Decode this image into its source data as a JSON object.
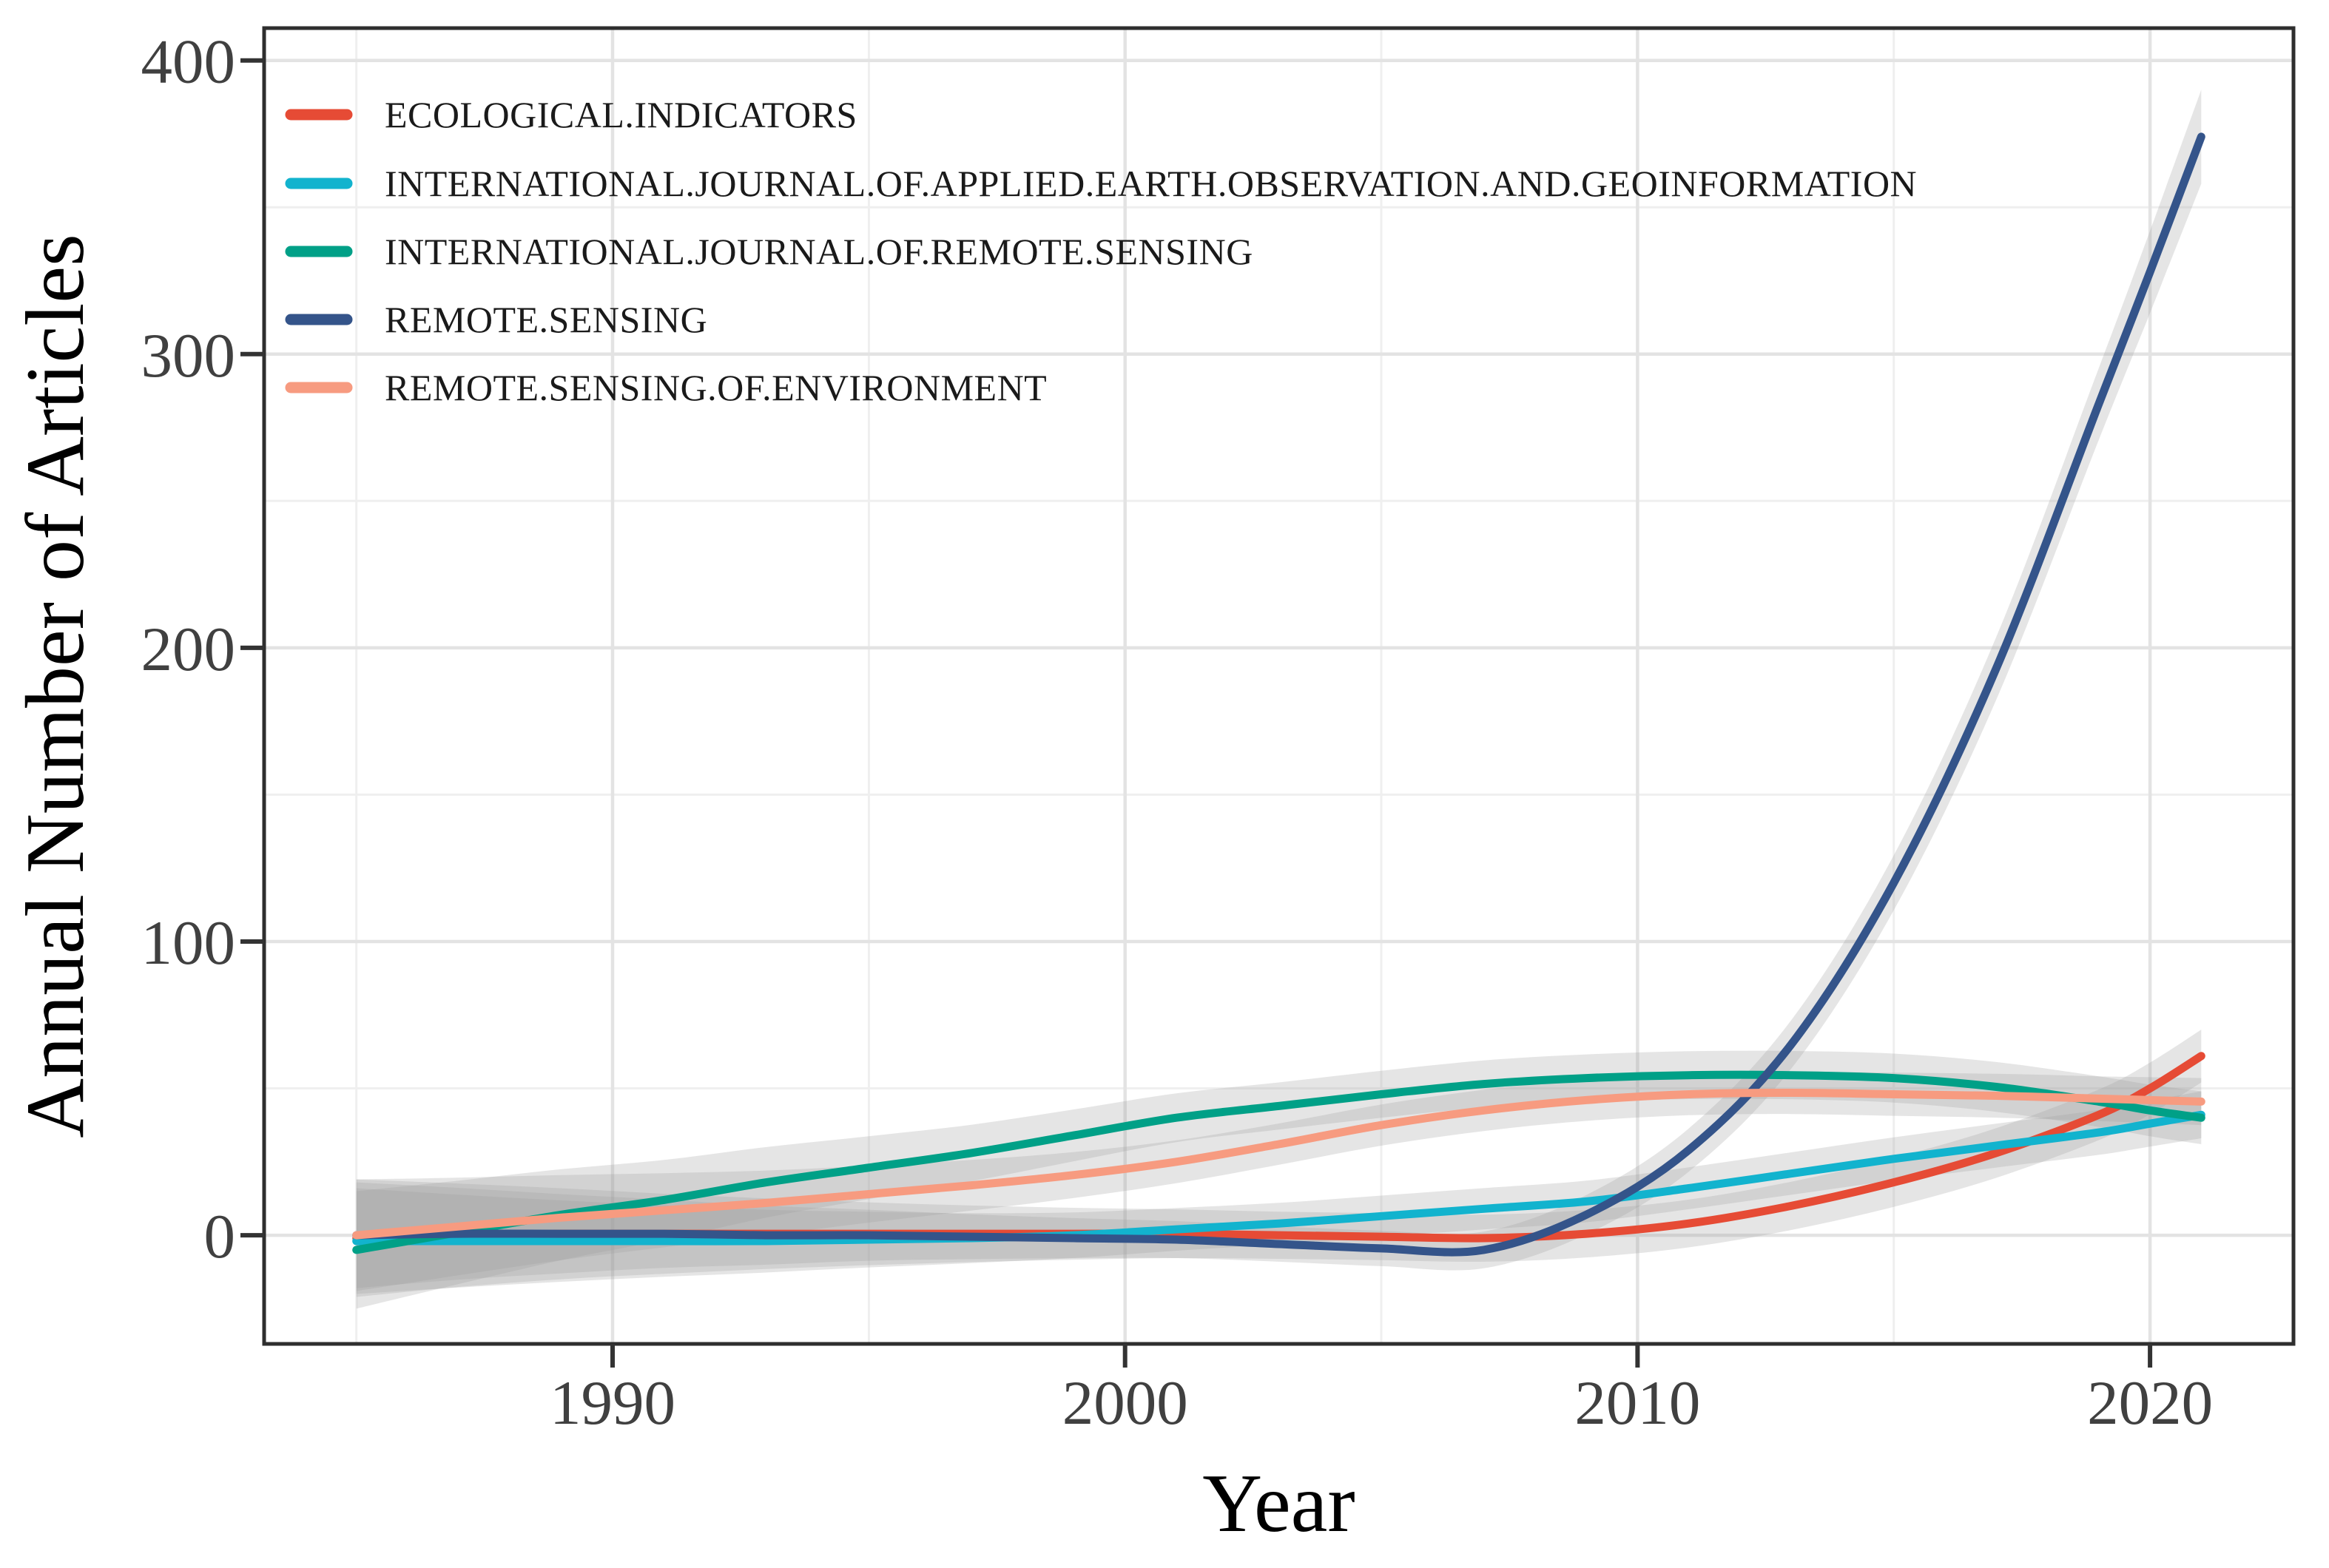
{
  "chart_data": {
    "type": "line",
    "title": "",
    "xlabel": "Year",
    "ylabel": "Annual Number of Articles",
    "grid": true,
    "legend_position": "top-left-inside",
    "x_axis": {
      "range": [
        1983.2,
        2022.8
      ],
      "ticks": [
        1990,
        2000,
        2010,
        2020
      ],
      "minor_ticks": [
        1985,
        1995,
        2005,
        2015
      ]
    },
    "y_axis": {
      "range": [
        -37,
        411
      ],
      "ticks": [
        0,
        100,
        200,
        300,
        400
      ],
      "minor_ticks": [
        50,
        150,
        250,
        350
      ]
    },
    "x": [
      1985,
      1987,
      1989,
      1991,
      1993,
      1995,
      1997,
      1999,
      2001,
      2003,
      2005,
      2007,
      2009,
      2011,
      2013,
      2015,
      2017,
      2019,
      2020,
      2021
    ],
    "series": [
      {
        "name": "ECOLOGICAL.INDICATORS",
        "color": "#E64B35",
        "values": [
          -1,
          0,
          0.5,
          0.5,
          0.5,
          0.5,
          0.5,
          0.5,
          0.5,
          0,
          -0.5,
          -1,
          0.5,
          4,
          10,
          18,
          28,
          41,
          50,
          61
        ],
        "band": {
          "start": 20,
          "mid": 8,
          "end": 9
        }
      },
      {
        "name": "INTERNATIONAL.JOURNAL.OF.APPLIED.EARTH.OBSERVATION.AND.GEOINFORMATION",
        "color": "#12B3CE",
        "values": [
          -2,
          -2,
          -2,
          -2,
          -2,
          -1.5,
          -1,
          0,
          2,
          4,
          6.5,
          9,
          11.5,
          16,
          21,
          26,
          30.5,
          35,
          38,
          41
        ],
        "band": {
          "start": 18,
          "mid": 7,
          "end": 8
        }
      },
      {
        "name": "INTERNATIONAL.JOURNAL.OF.REMOTE.SENSING",
        "color": "#00A087",
        "values": [
          -5,
          1,
          7,
          12,
          18,
          23,
          28,
          34,
          40,
          44,
          48,
          51.5,
          53.5,
          54.5,
          54.5,
          53.5,
          50.5,
          45.5,
          42.5,
          40
        ],
        "band": {
          "start": 20,
          "mid": 8,
          "end": 9
        }
      },
      {
        "name": "REMOTE.SENSING",
        "color": "#34548A",
        "values": [
          0,
          0.5,
          0.5,
          0.5,
          0,
          0,
          -0.5,
          -1,
          -1.5,
          -3,
          -4.5,
          -5,
          7,
          29,
          65,
          120,
          193,
          283,
          328,
          374
        ],
        "band": {
          "start": 18,
          "mid": 6,
          "end": 16
        }
      },
      {
        "name": "REMOTE.SENSING.OF.ENVIRONMENT",
        "color": "#F79B80",
        "values": [
          0,
          3,
          6,
          8.5,
          11,
          14,
          17,
          20.5,
          25,
          31,
          37.5,
          42.5,
          46,
          48,
          48.5,
          48,
          47.5,
          46.5,
          46,
          45.5
        ],
        "band": {
          "start": 19,
          "mid": 7,
          "end": 8
        }
      }
    ],
    "band_color": "#9E9E9E",
    "band_opacity": 0.27,
    "panel_border_color": "#2E2E2E",
    "grid_major_color": "#E3E3E3",
    "grid_minor_color": "#EFEFEF",
    "tick_color": "#333333"
  }
}
